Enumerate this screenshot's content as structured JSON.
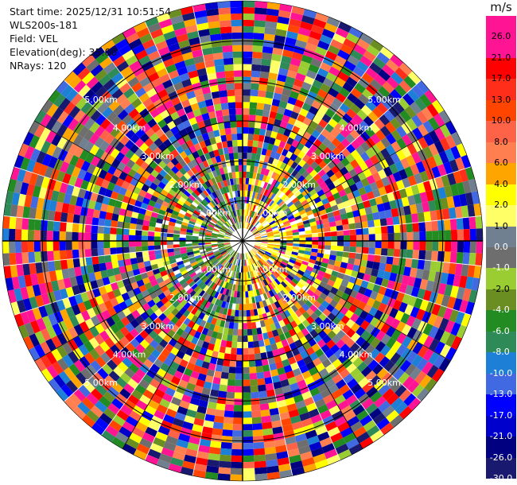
{
  "header": {
    "start_time": "Start time: 2025/12/31 10:51:54",
    "instrument": "WLS200s-181",
    "field": "Field: VEL",
    "elevation": "Elevation(deg): 35.00",
    "nrays": "NRays: 120"
  },
  "chart_data": {
    "type": "heatmap",
    "subtype": "polar-ppi",
    "field": "VEL",
    "elevation_deg": 35.0,
    "n_rays": 120,
    "max_range_km": 6.0,
    "range_rings_km": [
      1,
      2,
      3,
      4,
      5
    ],
    "range_ring_labels": [
      "1.00km",
      "2.00km",
      "3.00km",
      "4.00km",
      "5.00km"
    ],
    "spoke_angles_deg": [
      0,
      30,
      60,
      90,
      120,
      150,
      180,
      210,
      240,
      270,
      300,
      330
    ],
    "colorbar": {
      "unit": "m/s",
      "ticks": [
        "26.0",
        "21.0",
        "17.0",
        "13.0",
        "10.0",
        "8.0",
        "6.0",
        "4.0",
        "2.0",
        "1.0",
        "0.0",
        "-1.0",
        "-2.0",
        "-4.0",
        "-6.0",
        "-8.0",
        "-10.0",
        "-13.0",
        "-17.0",
        "-21.0",
        "-26.0",
        "-30.0"
      ],
      "bins": [
        {
          "color": "#ff1493"
        },
        {
          "color": "#ff1493"
        },
        {
          "color": "#ff0000"
        },
        {
          "color": "#ff2e1a"
        },
        {
          "color": "#ff4500"
        },
        {
          "color": "#ff6347"
        },
        {
          "color": "#ff7f50"
        },
        {
          "color": "#ffa500"
        },
        {
          "color": "#ffff00"
        },
        {
          "color": "#ffff66"
        },
        {
          "color": "#708090"
        },
        {
          "color": "#6e6e6e"
        },
        {
          "color": "#9acd32"
        },
        {
          "color": "#6b8e23"
        },
        {
          "color": "#228b22"
        },
        {
          "color": "#2e8b57"
        },
        {
          "color": "#1e7fd6"
        },
        {
          "color": "#4169e1"
        },
        {
          "color": "#0000ff"
        },
        {
          "color": "#0000cd"
        },
        {
          "color": "#000080"
        },
        {
          "color": "#191970"
        }
      ]
    }
  }
}
